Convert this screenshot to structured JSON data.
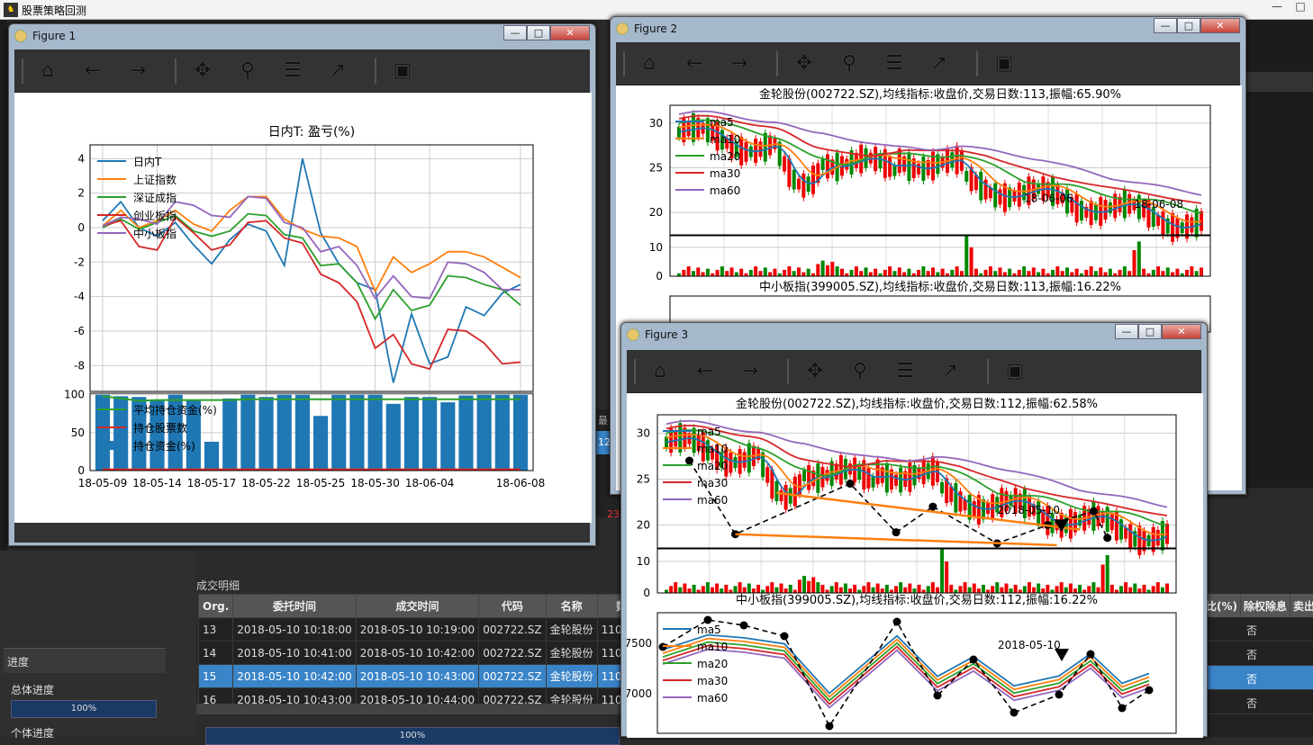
{
  "app": {
    "title": "股票策略回测"
  },
  "window_controls": {
    "minimize": "—",
    "maximize": "□",
    "close": "✕"
  },
  "progress": {
    "section_label": "进度",
    "overall_label": "总体进度",
    "overall_value": "100%",
    "overall_fraction": 1.0,
    "single_label": "个体进度",
    "single_value": "100%"
  },
  "detail": {
    "title": "成交明细",
    "columns": [
      "Org.",
      "委托时间",
      "成交时间",
      "代码",
      "名称",
      "数量"
    ],
    "rows": [
      [
        "13",
        "2018-05-10 10:18:00",
        "2018-05-10 10:19:00",
        "002722.SZ",
        "金轮股份",
        "1100.000"
      ],
      [
        "14",
        "2018-05-10 10:41:00",
        "2018-05-10 10:42:00",
        "002722.SZ",
        "金轮股份",
        "1100.000"
      ],
      [
        "15",
        "2018-05-10 10:42:00",
        "2018-05-10 10:43:00",
        "002722.SZ",
        "金轮股份",
        "1100.000"
      ],
      [
        "16",
        "2018-05-10 10:43:00",
        "2018-05-10 10:44:00",
        "002722.SZ",
        "金轮股份",
        "1100.000"
      ]
    ],
    "selected_row": 2
  },
  "right_table": {
    "headers": [
      "比(%)",
      "除权除息",
      "卖出"
    ],
    "values": [
      "否",
      "否",
      "否",
      "否"
    ]
  },
  "fig1": {
    "caption": "Figure 1",
    "chart_data": [
      {
        "type": "line",
        "title": "日内T: 盈亏(%)",
        "x_ticks": [
          "18-05-09",
          "18-05-14",
          "18-05-17",
          "18-05-22",
          "18-05-25",
          "18-05-30",
          "18-06-04",
          "18-06-08"
        ],
        "y_ticks": [
          "4",
          "2",
          "0",
          "-2",
          "-4",
          "-6",
          "-8"
        ],
        "ylim": [
          -9.5,
          4.8
        ],
        "legend_placement": "upper-left",
        "series": [
          {
            "name": "日内T",
            "color": "#1f77b4",
            "values": [
              0.4,
              1.5,
              0.0,
              -0.5,
              0.3,
              -1.0,
              -2.1,
              -0.7,
              0.2,
              -0.2,
              -2.2,
              4.0,
              -0.3,
              -2.1,
              -3.2,
              -3.6,
              -9.0,
              -5.0,
              -7.9,
              -7.5,
              -4.6,
              -5.1,
              -3.8,
              -3.3
            ]
          },
          {
            "name": "上证指数",
            "color": "#ff7f0e",
            "values": [
              0.1,
              1.0,
              0.0,
              0.4,
              1.0,
              0.2,
              -0.2,
              1.0,
              1.8,
              1.8,
              0.5,
              -0.1,
              -0.5,
              -0.6,
              -1.1,
              -3.7,
              -1.7,
              -2.6,
              -2.1,
              -1.4,
              -1.4,
              -1.7,
              -2.3,
              -2.9
            ]
          },
          {
            "name": "深证成指",
            "color": "#2ca02c",
            "values": [
              0.0,
              0.5,
              -0.1,
              0.3,
              0.7,
              -0.2,
              -0.5,
              -0.2,
              0.8,
              0.7,
              -0.4,
              -0.6,
              -2.2,
              -2.1,
              -3.2,
              -5.3,
              -3.6,
              -4.8,
              -4.5,
              -2.8,
              -2.9,
              -3.3,
              -3.6,
              -4.5
            ]
          },
          {
            "name": "创业板指",
            "color": "#d62728",
            "values": [
              0.1,
              0.4,
              -1.1,
              -1.3,
              0.6,
              -0.3,
              -1.3,
              -1.0,
              0.3,
              0.4,
              -0.6,
              -0.9,
              -2.7,
              -3.2,
              -4.3,
              -7.0,
              -6.2,
              -7.9,
              -8.2,
              -5.9,
              -6.0,
              -6.7,
              -7.9,
              -7.8
            ]
          },
          {
            "name": "中小板指",
            "color": "#9467bd",
            "values": [
              0.1,
              0.6,
              0.5,
              0.2,
              1.5,
              1.3,
              0.7,
              0.6,
              1.8,
              1.7,
              0.3,
              0.0,
              -1.4,
              -1.1,
              -2.2,
              -4.1,
              -2.8,
              -4.0,
              -4.1,
              -2.0,
              -2.1,
              -2.6,
              -3.6,
              -3.6
            ]
          }
        ]
      },
      {
        "type": "bar",
        "y_ticks": [
          "100",
          "50",
          "0"
        ],
        "ylim": [
          0,
          102
        ],
        "legend_placement": "upper-left",
        "series": [
          {
            "name": "平均持仓资金(%)",
            "color": "#2ca02c",
            "values": [
              98,
              95,
              92,
              93,
              93,
              93,
              93,
              93,
              94,
              94,
              94,
              94,
              94,
              94,
              94,
              94,
              94,
              94,
              94,
              94,
              94,
              94,
              94,
              94
            ]
          },
          {
            "name": "持仓股票数",
            "color": "#d62728",
            "values": [
              1,
              1,
              1,
              1,
              1,
              1,
              1,
              1,
              1,
              1,
              1,
              1,
              1,
              1,
              1,
              1,
              1,
              1,
              1,
              1,
              1,
              1,
              1,
              1
            ]
          },
          {
            "name": "持仓资金(%)",
            "color": "#1f77b4",
            "values": [
              100,
              98,
              97,
              92,
              100,
              93,
              38,
              95,
              100,
              97,
              100,
              100,
              72,
              100,
              100,
              100,
              88,
              97,
              97,
              90,
              99,
              100,
              100,
              100
            ]
          }
        ]
      }
    ]
  },
  "fig2": {
    "caption": "Figure 2",
    "title": "金轮股份(002722.SZ),均线指标:收盘价,交易日数:113,振幅:65.90%",
    "title2": "中小板指(399005.SZ),均线指标:收盘价,交易日数:113,振幅:16.22%",
    "y_ticks": [
      "30",
      "25",
      "20"
    ],
    "vol_ticks": [
      "10",
      "0"
    ],
    "legend": [
      "ma5",
      "ma10",
      "ma20",
      "ma30",
      "ma60"
    ],
    "annotation": "18-06-06",
    "annotation2": "18-06-08"
  },
  "fig3": {
    "caption": "Figure 3",
    "title": "金轮股份(002722.SZ),均线指标:收盘价,交易日数:112,振幅:62.58%",
    "title2": "中小板指(399005.SZ),均线指标:收盘价,交易日数:112,振幅:16.22%",
    "y_ticks": [
      "30",
      "25",
      "20"
    ],
    "vol_ticks": [
      "10",
      "0"
    ],
    "y_ticks_b": [
      "7500",
      "7000"
    ],
    "legend": [
      "ma5",
      "ma10",
      "ma20",
      "ma30",
      "ma60"
    ],
    "annotation": "2018-05-10",
    "annotation_b": "2018-05-10"
  },
  "ma_colors": [
    "#1f77b4",
    "#ff7f0e",
    "#2ca02c",
    "#d62728",
    "#9467bd"
  ]
}
